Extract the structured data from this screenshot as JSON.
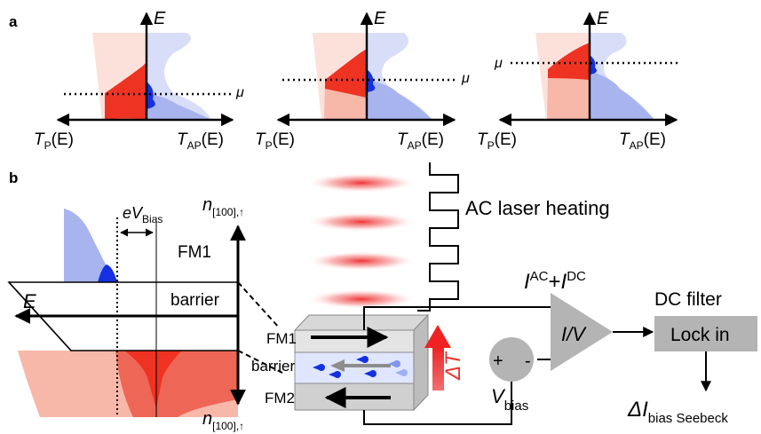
{
  "panel_a": {
    "label": "a",
    "plots": [
      {
        "axis_y": "E",
        "mu": "μ",
        "left": "T",
        "left_sub": "P",
        "left_arg": "(E)",
        "right": "T",
        "right_sub": "AP",
        "right_arg": "(E)"
      },
      {
        "axis_y": "E",
        "mu": "μ",
        "left": "T",
        "left_sub": "P",
        "left_arg": "(E)",
        "right": "T",
        "right_sub": "AP",
        "right_arg": "(E)"
      },
      {
        "axis_y": "E",
        "mu": "μ",
        "left": "T",
        "left_sub": "P",
        "left_arg": "(E)",
        "right": "T",
        "right_sub": "AP",
        "right_arg": "(E)"
      }
    ]
  },
  "panel_b": {
    "label": "b",
    "energy_axis": "E",
    "bias_label": "eV",
    "bias_sub": "Bias",
    "n_top": "n",
    "n_top_sub": "[100],↑",
    "n_bottom": "n",
    "n_bottom_sub": "[100],↑",
    "fm1_band": "FM1",
    "barrier_band": "barrier",
    "stack": {
      "fm1": "FM1",
      "barrier": "barrier",
      "fm2": "FM2"
    },
    "laser": "AC laser heating",
    "current": "I",
    "current_ac": "AC",
    "plus": "+",
    "current2": "I",
    "current_dc": "DC",
    "delta_t": "ΔT",
    "plus_sign": "+",
    "minus_sign": "-",
    "vbias": "V",
    "vbias_sub": "bias",
    "amp": "I/V",
    "dc_filter": "DC filter",
    "lock_in": "Lock in",
    "output": "ΔI",
    "output_sub": "bias Seebeck"
  },
  "colors": {
    "red": "#ee3322",
    "pink": "#f7b7a9",
    "blue": "#1430e0",
    "lightblue": "#a8b4ee",
    "gray": "#aaaaaa"
  }
}
